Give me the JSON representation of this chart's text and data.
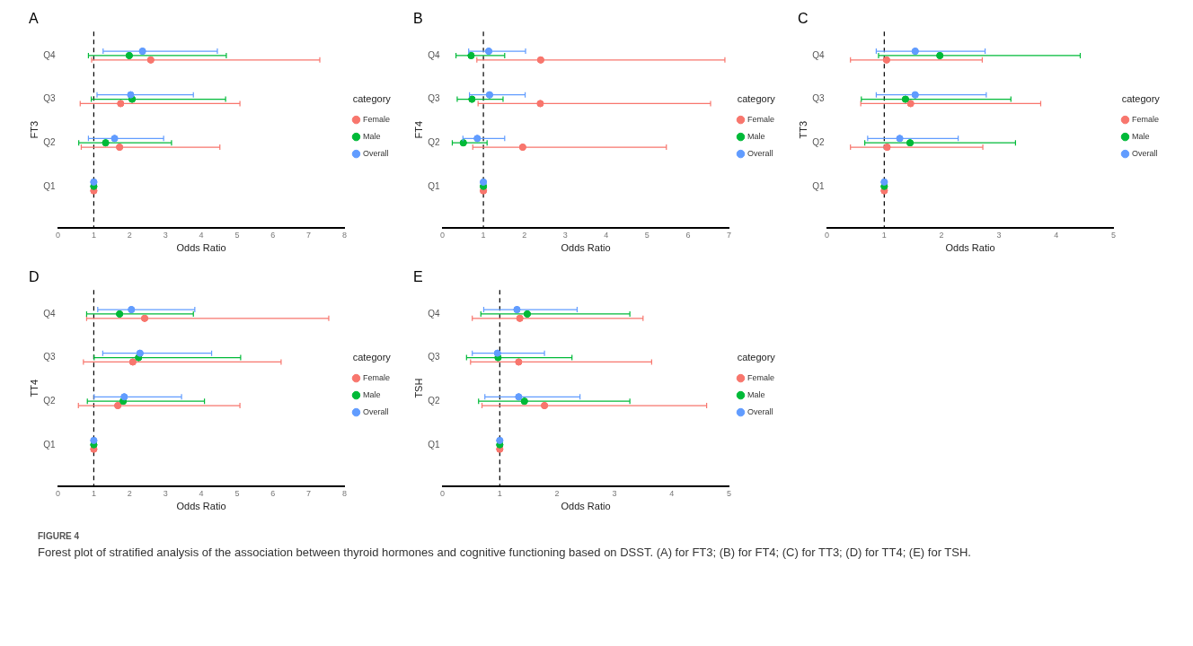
{
  "chart_data": [
    {
      "type": "scatter",
      "orientation": "horizontal",
      "title": "A",
      "xlabel": "Odds Ratio",
      "ylabel": "FT3",
      "legend_title": "category",
      "legend": "right",
      "marker": "circle",
      "categories": [
        "Q4",
        "Q3",
        "Q2",
        "Q1"
      ],
      "xlim": [
        0,
        8
      ],
      "xticks": [
        0,
        1,
        2,
        3,
        4,
        5,
        6,
        7,
        8
      ],
      "ref_lines": [
        {
          "axis": "x",
          "value": 1,
          "color": "#000000",
          "line_style": "dashed"
        }
      ],
      "series": [
        {
          "name": "Female",
          "color": "#f8766d",
          "values": [
            2.59,
            1.75,
            1.72,
            1
          ],
          "errors": [
            [
              0.94,
              7.31
            ],
            [
              0.62,
              5.08
            ],
            [
              0.65,
              4.52
            ],
            null
          ]
        },
        {
          "name": "Male",
          "color": "#00ba38",
          "values": [
            1.99,
            2.07,
            1.33,
            1
          ],
          "errors": [
            [
              0.85,
              4.7
            ],
            [
              0.93,
              4.68
            ],
            [
              0.58,
              3.17
            ],
            null
          ]
        },
        {
          "name": "Overall",
          "color": "#619cff",
          "values": [
            2.36,
            2.03,
            1.58,
            1
          ],
          "errors": [
            [
              1.26,
              4.45
            ],
            [
              1.09,
              3.78
            ],
            [
              0.85,
              2.95
            ],
            null
          ]
        }
      ],
      "annotations": [
        "FIGURE 4",
        "Forest plot of stratified analysis of the association between thyroid hormones and cognitive functioning based on DSST. (A) for FT3; (B) for FT4; (C) for TT3; (D) for TT4; (E) for TSH."
      ]
    },
    {
      "type": "scatter",
      "orientation": "horizontal",
      "title": "B",
      "xlabel": "Odds Ratio",
      "ylabel": "FT4",
      "legend_title": "category",
      "legend": "right",
      "marker": "circle",
      "categories": [
        "Q4",
        "Q3",
        "Q2",
        "Q1"
      ],
      "xlim": [
        0,
        7
      ],
      "xticks": [
        0,
        1,
        2,
        3,
        4,
        5,
        6,
        7
      ],
      "ref_lines": [
        {
          "axis": "x",
          "value": 1,
          "color": "#000000",
          "line_style": "dashed"
        }
      ],
      "series": [
        {
          "name": "Female",
          "color": "#f8766d",
          "values": [
            2.4,
            2.39,
            1.96,
            1
          ],
          "errors": [
            [
              0.84,
              6.9
            ],
            [
              0.87,
              6.55
            ],
            [
              0.74,
              5.47
            ],
            null
          ]
        },
        {
          "name": "Male",
          "color": "#00ba38",
          "values": [
            0.7,
            0.72,
            0.51,
            1
          ],
          "errors": [
            [
              0.33,
              1.52
            ],
            [
              0.36,
              1.48
            ],
            [
              0.24,
              1.09
            ],
            null
          ]
        },
        {
          "name": "Overall",
          "color": "#619cff",
          "values": [
            1.13,
            1.15,
            0.85,
            1
          ],
          "errors": [
            [
              0.64,
              2.03
            ],
            [
              0.66,
              2.02
            ],
            [
              0.5,
              1.52
            ],
            null
          ]
        }
      ]
    },
    {
      "type": "scatter",
      "orientation": "horizontal",
      "title": "C",
      "xlabel": "Odds Ratio",
      "ylabel": "TT3",
      "legend_title": "category",
      "legend": "right",
      "marker": "circle",
      "categories": [
        "Q4",
        "Q3",
        "Q2",
        "Q1"
      ],
      "xlim": [
        0,
        5
      ],
      "xticks": [
        0,
        1,
        2,
        3,
        4,
        5
      ],
      "ref_lines": [
        {
          "axis": "x",
          "value": 1,
          "color": "#000000",
          "line_style": "dashed"
        }
      ],
      "series": [
        {
          "name": "Female",
          "color": "#f8766d",
          "values": [
            1.04,
            1.46,
            1.05,
            1
          ],
          "errors": [
            [
              0.41,
              2.71
            ],
            [
              0.59,
              3.73
            ],
            [
              0.41,
              2.72
            ],
            null
          ]
        },
        {
          "name": "Male",
          "color": "#00ba38",
          "values": [
            1.97,
            1.37,
            1.45,
            1
          ],
          "errors": [
            [
              0.9,
              4.42
            ],
            [
              0.6,
              3.21
            ],
            [
              0.66,
              3.29
            ],
            null
          ]
        },
        {
          "name": "Overall",
          "color": "#619cff",
          "values": [
            1.54,
            1.54,
            1.27,
            1
          ],
          "errors": [
            [
              0.86,
              2.76
            ],
            [
              0.86,
              2.78
            ],
            [
              0.71,
              2.29
            ],
            null
          ]
        }
      ]
    },
    {
      "type": "scatter",
      "orientation": "horizontal",
      "title": "D",
      "xlabel": "Odds Ratio",
      "ylabel": "TT4",
      "legend_title": "category",
      "legend": "right",
      "marker": "circle",
      "categories": [
        "Q4",
        "Q3",
        "Q2",
        "Q1"
      ],
      "xlim": [
        0,
        8
      ],
      "xticks": [
        0,
        1,
        2,
        3,
        4,
        5,
        6,
        7,
        8
      ],
      "ref_lines": [
        {
          "axis": "x",
          "value": 1,
          "color": "#000000",
          "line_style": "dashed"
        }
      ],
      "series": [
        {
          "name": "Female",
          "color": "#f8766d",
          "values": [
            2.42,
            2.09,
            1.67,
            1
          ],
          "errors": [
            [
              0.8,
              7.56
            ],
            [
              0.71,
              6.23
            ],
            [
              0.57,
              5.08
            ],
            null
          ]
        },
        {
          "name": "Male",
          "color": "#00ba38",
          "values": [
            1.72,
            2.25,
            1.82,
            1
          ],
          "errors": [
            [
              0.8,
              3.78
            ],
            [
              1.01,
              5.1
            ],
            [
              0.82,
              4.09
            ],
            null
          ]
        },
        {
          "name": "Overall",
          "color": "#619cff",
          "values": [
            2.05,
            2.29,
            1.85,
            1
          ],
          "errors": [
            [
              1.11,
              3.82
            ],
            [
              1.25,
              4.29
            ],
            [
              1.01,
              3.45
            ],
            null
          ]
        }
      ]
    },
    {
      "type": "scatter",
      "orientation": "horizontal",
      "title": "E",
      "xlabel": "Odds Ratio",
      "ylabel": "TSH",
      "legend_title": "category",
      "legend": "right",
      "marker": "circle",
      "categories": [
        "Q4",
        "Q3",
        "Q2",
        "Q1"
      ],
      "xlim": [
        0,
        5
      ],
      "xticks": [
        0,
        1,
        2,
        3,
        4,
        5
      ],
      "ref_lines": [
        {
          "axis": "x",
          "value": 1,
          "color": "#000000",
          "line_style": "dashed"
        }
      ],
      "series": [
        {
          "name": "Female",
          "color": "#f8766d",
          "values": [
            1.35,
            1.33,
            1.78,
            1
          ],
          "errors": [
            [
              0.52,
              3.5
            ],
            [
              0.49,
              3.65
            ],
            [
              0.69,
              4.61
            ],
            null
          ]
        },
        {
          "name": "Male",
          "color": "#00ba38",
          "values": [
            1.48,
            0.97,
            1.43,
            1
          ],
          "errors": [
            [
              0.67,
              3.27
            ],
            [
              0.42,
              2.26
            ],
            [
              0.63,
              3.27
            ],
            null
          ]
        },
        {
          "name": "Overall",
          "color": "#619cff",
          "values": [
            1.3,
            0.96,
            1.33,
            1
          ],
          "errors": [
            [
              0.72,
              2.35
            ],
            [
              0.52,
              1.78
            ],
            [
              0.74,
              2.4
            ],
            null
          ]
        }
      ]
    }
  ]
}
